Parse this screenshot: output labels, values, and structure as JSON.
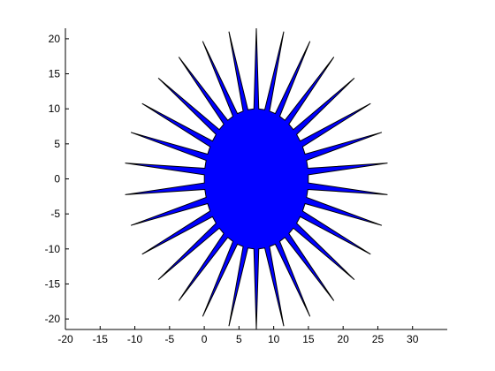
{
  "chart_data": {
    "type": "area",
    "title": "",
    "xlabel": "",
    "ylabel": "",
    "xlim": [
      -20,
      35
    ],
    "ylim": [
      -21.5,
      21.5
    ],
    "xticks": [
      "-20",
      "-15",
      "-10",
      "-5",
      "0",
      "5",
      "10",
      "15",
      "20",
      "25",
      "30"
    ],
    "yticks": [
      "-20",
      "-15",
      "-10",
      "-5",
      "0",
      "5",
      "10",
      "15",
      "20"
    ],
    "grid": false,
    "legend": "none",
    "fill_color": "#0000ff",
    "edge_color": "#000000",
    "shape": "star polygon",
    "center": [
      7.5,
      0
    ],
    "points": 30,
    "inner_radius": [
      7.5,
      10
    ],
    "outer_radius": [
      19,
      21.5
    ]
  }
}
